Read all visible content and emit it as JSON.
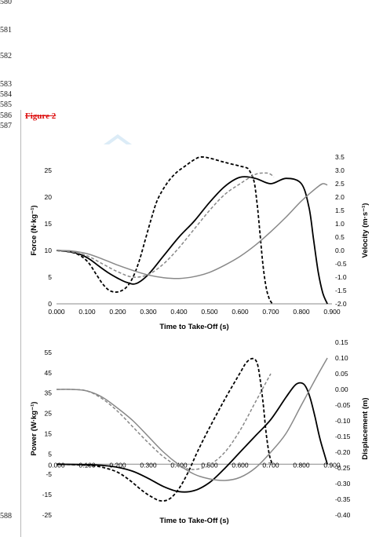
{
  "line_numbers": [
    "580",
    "581",
    "582",
    "583",
    "584",
    "585",
    "586",
    "587",
    "588"
  ],
  "figure_label": "Figure 2",
  "chart_data": [
    {
      "type": "line",
      "xlabel": "Time to Take-Off (s)",
      "ylabel": "Force (N·kg⁻¹)",
      "y2label": "Velocity (m·s⁻¹)",
      "xlim": [
        0,
        0.9
      ],
      "ylim": [
        0,
        27.5
      ],
      "y2lim": [
        -2.0,
        3.5
      ],
      "x_ticks": [
        "0.000",
        "0.100",
        "0.200",
        "0.300",
        "0.400",
        "0.500",
        "0.600",
        "0.700",
        "0.800",
        "0.900"
      ],
      "y_ticks": [
        "0",
        "5",
        "10",
        "15",
        "20",
        "25"
      ],
      "y2_ticks": [
        "-2.0",
        "-1.5",
        "-1.0",
        "-0.5",
        "0.0",
        "0.5",
        "1.0",
        "1.5",
        "2.0",
        "2.5",
        "3.0",
        "3.5"
      ],
      "grid": false,
      "series": [
        {
          "axis": "left",
          "color": "#000000",
          "style": "dashed",
          "x": [
            0,
            0.06,
            0.1,
            0.13,
            0.15,
            0.17,
            0.19,
            0.21,
            0.23,
            0.25,
            0.27,
            0.29,
            0.31,
            0.33,
            0.36,
            0.39,
            0.42,
            0.45,
            0.47,
            0.5,
            0.55,
            0.6,
            0.62,
            0.63,
            0.645,
            0.655,
            0.665,
            0.675,
            0.685,
            0.695,
            0.705
          ],
          "y": [
            10,
            9.5,
            8,
            5.5,
            3.8,
            2.6,
            2.2,
            2.4,
            3.2,
            5,
            8,
            12,
            16,
            19.5,
            22.5,
            24.5,
            25.8,
            27,
            27.5,
            27.3,
            26.5,
            25.8,
            25.5,
            25,
            23,
            19,
            13,
            7,
            3,
            1,
            0
          ]
        },
        {
          "axis": "left",
          "color": "#000000",
          "style": "solid",
          "x": [
            0,
            0.04,
            0.08,
            0.11,
            0.14,
            0.17,
            0.2,
            0.23,
            0.26,
            0.3,
            0.35,
            0.4,
            0.45,
            0.5,
            0.55,
            0.6,
            0.65,
            0.7,
            0.75,
            0.8,
            0.825,
            0.84,
            0.855,
            0.87,
            0.885
          ],
          "y": [
            10,
            9.8,
            9.2,
            8.3,
            7.0,
            5.8,
            4.8,
            4.0,
            3.8,
            5.5,
            9,
            12.5,
            15.5,
            19,
            22,
            23.7,
            23.5,
            22.5,
            23.5,
            22.5,
            18,
            12,
            6,
            2,
            0
          ]
        },
        {
          "axis": "right",
          "color": "#888888",
          "style": "dashed",
          "x": [
            0,
            0.05,
            0.1,
            0.15,
            0.2,
            0.25,
            0.3,
            0.35,
            0.4,
            0.45,
            0.5,
            0.55,
            0.6,
            0.65,
            0.685,
            0.7,
            0.71
          ],
          "y": [
            0,
            -0.05,
            -0.2,
            -0.5,
            -0.8,
            -1.0,
            -0.9,
            -0.5,
            0.1,
            0.8,
            1.5,
            2.1,
            2.5,
            2.85,
            2.9,
            2.85,
            2.75
          ]
        },
        {
          "axis": "right",
          "color": "#888888",
          "style": "solid",
          "x": [
            0,
            0.05,
            0.1,
            0.15,
            0.2,
            0.25,
            0.3,
            0.35,
            0.4,
            0.45,
            0.5,
            0.55,
            0.6,
            0.65,
            0.7,
            0.75,
            0.8,
            0.85,
            0.87,
            0.885
          ],
          "y": [
            0,
            -0.02,
            -0.12,
            -0.32,
            -0.55,
            -0.75,
            -0.92,
            -1.02,
            -1.05,
            -0.98,
            -0.82,
            -0.55,
            -0.22,
            0.2,
            0.7,
            1.25,
            1.85,
            2.35,
            2.5,
            2.45
          ]
        }
      ]
    },
    {
      "type": "line",
      "xlabel": "Time to Take-Off (s)",
      "ylabel": "Power (W·kg⁻¹)",
      "y2label": "Displacement (m)",
      "xlim": [
        0,
        0.9
      ],
      "ylim": [
        -25,
        60
      ],
      "y2lim": [
        -0.4,
        0.15
      ],
      "x_ticks": [
        "0.000",
        "0.100",
        "0.200",
        "0.300",
        "0.400",
        "0.500",
        "0.600",
        "0.700",
        "0.800",
        "0.900"
      ],
      "y_ticks": [
        "-25",
        "-15",
        "-5",
        "5",
        "15",
        "25",
        "35",
        "45",
        "55"
      ],
      "y2_ticks": [
        "-0.40",
        "-0.35",
        "-0.30",
        "-0.25",
        "-0.20",
        "-0.15",
        "-0.10",
        "-0.05",
        "0.00",
        "0.05",
        "0.10",
        "0.15"
      ],
      "grid": false,
      "series": [
        {
          "axis": "left",
          "color": "#000000",
          "style": "dashed",
          "x": [
            0,
            0.1,
            0.15,
            0.2,
            0.24,
            0.28,
            0.31,
            0.34,
            0.37,
            0.4,
            0.43,
            0.46,
            0.5,
            0.55,
            0.6,
            0.62,
            0.64,
            0.655,
            0.665,
            0.675,
            0.685,
            0.695,
            0.705
          ],
          "y": [
            0,
            -0.5,
            -1.5,
            -4,
            -8,
            -13,
            -16,
            -18,
            -17,
            -12,
            -4,
            6,
            18,
            32,
            45,
            50,
            52,
            50,
            42,
            30,
            15,
            5,
            0
          ]
        },
        {
          "axis": "left",
          "color": "#000000",
          "style": "solid",
          "x": [
            0,
            0.1,
            0.15,
            0.2,
            0.25,
            0.3,
            0.35,
            0.4,
            0.45,
            0.5,
            0.55,
            0.6,
            0.65,
            0.7,
            0.75,
            0.78,
            0.8,
            0.815,
            0.83,
            0.845,
            0.86,
            0.875,
            0.885
          ],
          "y": [
            0,
            -0.2,
            -0.6,
            -1.5,
            -3.5,
            -7,
            -11,
            -13.5,
            -13,
            -9,
            -2,
            6,
            14,
            22,
            33,
            39,
            40,
            38,
            32,
            23,
            13,
            5,
            0
          ]
        },
        {
          "axis": "right",
          "color": "#888888",
          "style": "dashed",
          "x": [
            0,
            0.05,
            0.1,
            0.15,
            0.2,
            0.25,
            0.3,
            0.35,
            0.4,
            0.45,
            0.5,
            0.55,
            0.6,
            0.65,
            0.7
          ],
          "y": [
            0,
            0,
            -0.005,
            -0.03,
            -0.07,
            -0.12,
            -0.17,
            -0.215,
            -0.245,
            -0.255,
            -0.24,
            -0.2,
            -0.13,
            -0.04,
            0.05
          ]
        },
        {
          "axis": "right",
          "color": "#888888",
          "style": "solid",
          "x": [
            0,
            0.05,
            0.1,
            0.15,
            0.2,
            0.25,
            0.3,
            0.35,
            0.4,
            0.45,
            0.5,
            0.55,
            0.6,
            0.65,
            0.7,
            0.75,
            0.8,
            0.85,
            0.885
          ],
          "y": [
            0,
            0,
            -0.005,
            -0.025,
            -0.06,
            -0.1,
            -0.15,
            -0.2,
            -0.24,
            -0.27,
            -0.285,
            -0.29,
            -0.28,
            -0.25,
            -0.2,
            -0.14,
            -0.05,
            0.04,
            0.1
          ]
        }
      ]
    }
  ]
}
